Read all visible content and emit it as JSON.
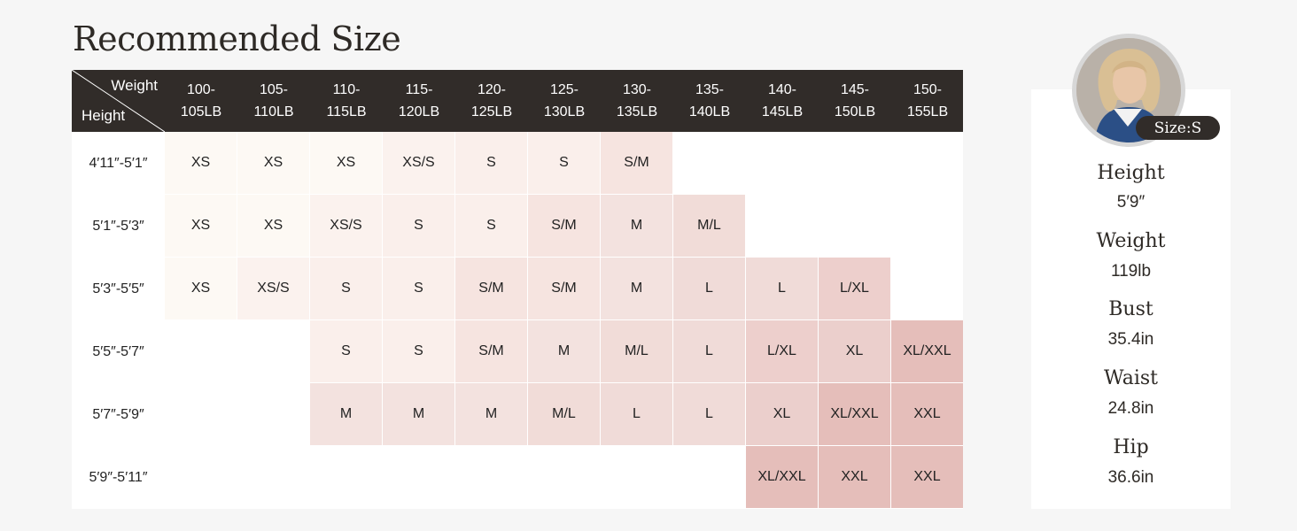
{
  "title": "Recommended Size",
  "chart_data": {
    "type": "table",
    "corner_labels": {
      "column_axis": "Weight",
      "row_axis": "Height"
    },
    "columns": [
      [
        "100-",
        "105LB"
      ],
      [
        "105-",
        "110LB"
      ],
      [
        "110-",
        "115LB"
      ],
      [
        "115-",
        "120LB"
      ],
      [
        "120-",
        "125LB"
      ],
      [
        "125-",
        "130LB"
      ],
      [
        "130-",
        "135LB"
      ],
      [
        "135-",
        "140LB"
      ],
      [
        "140-",
        "145LB"
      ],
      [
        "145-",
        "150LB"
      ],
      [
        "150-",
        "155LB"
      ]
    ],
    "rows": [
      {
        "height": "4′11″-5′1″",
        "sizes": [
          "XS",
          "XS",
          "XS",
          "XS/S",
          "S",
          "S",
          "S/M",
          "",
          "",
          "",
          ""
        ]
      },
      {
        "height": "5′1″-5′3″",
        "sizes": [
          "XS",
          "XS",
          "XS/S",
          "S",
          "S",
          "S/M",
          "M",
          "M/L",
          "",
          "",
          ""
        ]
      },
      {
        "height": "5′3″-5′5″",
        "sizes": [
          "XS",
          "XS/S",
          "S",
          "S",
          "S/M",
          "S/M",
          "M",
          "L",
          "L",
          "L/XL",
          ""
        ]
      },
      {
        "height": "5′5″-5′7″",
        "sizes": [
          "",
          "",
          "S",
          "S",
          "S/M",
          "M",
          "M/L",
          "L",
          "L/XL",
          "XL",
          "XL/XXL"
        ]
      },
      {
        "height": "5′7″-5′9″",
        "sizes": [
          "",
          "",
          "M",
          "M",
          "M",
          "M/L",
          "L",
          "L",
          "XL",
          "XL/XXL",
          "XXL"
        ]
      },
      {
        "height": "5′9″-5′11″",
        "sizes": [
          "",
          "",
          "",
          "",
          "",
          "",
          "",
          "",
          "XL/XXL",
          "XXL",
          "XXL"
        ]
      }
    ],
    "size_colors": {
      "XS": "#fdf9f4",
      "XS/S": "#fbf2ee",
      "S": "#faefeb",
      "S/M": "#f6e4e0",
      "M": "#f3e2df",
      "M/L": "#f1dcd8",
      "L": "#f0dbd8",
      "L/XL": "#edcfcc",
      "XL": "#ebcfcc",
      "XL/XXL": "#e5beba",
      "XXL": "#e5beba"
    },
    "header_color": "#312c29"
  },
  "model": {
    "size_badge": "Size:S",
    "stats": [
      {
        "label": "Height",
        "value": "5′9″"
      },
      {
        "label": "Weight",
        "value": "119lb"
      },
      {
        "label": "Bust",
        "value": "35.4in"
      },
      {
        "label": "Waist",
        "value": "24.8in"
      },
      {
        "label": "Hip",
        "value": "36.6in"
      }
    ]
  }
}
